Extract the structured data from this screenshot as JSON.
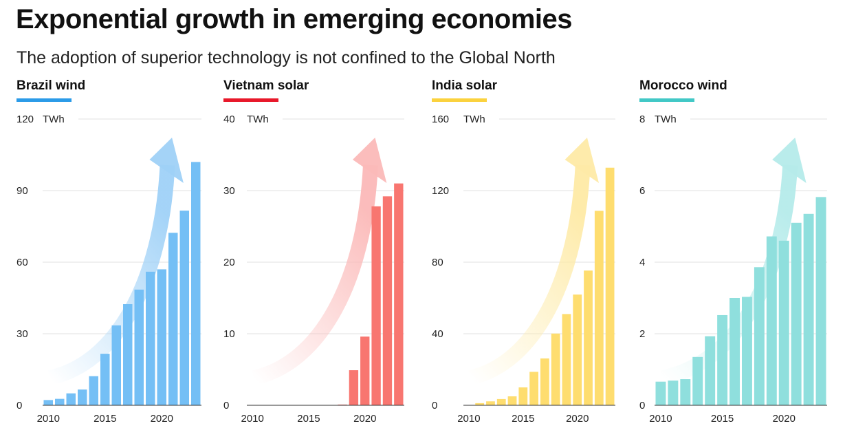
{
  "title": "Exponential growth in emerging economies",
  "subtitle": "The adoption of superior technology is not confined to the Global North",
  "chart_data": [
    {
      "type": "bar",
      "title": "Brazil wind",
      "unit": "TWh",
      "color": "#74bff5",
      "accent": "#2b9be8",
      "arrow_color": "#9fd1f7",
      "x": [
        2010,
        2011,
        2012,
        2013,
        2014,
        2015,
        2016,
        2017,
        2018,
        2019,
        2020,
        2021,
        2022,
        2023
      ],
      "values": [
        2.2,
        2.7,
        5.0,
        6.6,
        12.2,
        21.6,
        33.5,
        42.4,
        48.5,
        56.0,
        57.0,
        72.3,
        81.6,
        102.0
      ],
      "ylim": [
        0,
        120
      ],
      "yticks": [
        0,
        30,
        60,
        90,
        120
      ],
      "xticks": [
        2010,
        2015,
        2020
      ]
    },
    {
      "type": "bar",
      "title": "Vietnam solar",
      "unit": "TWh",
      "color": "#f87670",
      "accent": "#e8182a",
      "arrow_color": "#fbb9b8",
      "x": [
        2010,
        2011,
        2012,
        2013,
        2014,
        2015,
        2016,
        2017,
        2018,
        2019,
        2020,
        2021,
        2022,
        2023
      ],
      "values": [
        0,
        0,
        0,
        0,
        0,
        0,
        0,
        0,
        0.1,
        4.9,
        9.6,
        27.8,
        29.2,
        31.0
      ],
      "ylim": [
        0,
        40
      ],
      "yticks": [
        0,
        10,
        20,
        30,
        40
      ],
      "xticks": [
        2010,
        2015,
        2020
      ]
    },
    {
      "type": "bar",
      "title": "India solar",
      "unit": "TWh",
      "color": "#fedd6f",
      "accent": "#fbd23e",
      "arrow_color": "#feeaa6",
      "x": [
        2010,
        2011,
        2012,
        2013,
        2014,
        2015,
        2016,
        2017,
        2018,
        2019,
        2020,
        2021,
        2022,
        2023
      ],
      "values": [
        0.1,
        1.2,
        2.2,
        3.5,
        5.0,
        10.0,
        18.7,
        26.2,
        40.1,
        51.0,
        61.9,
        75.3,
        108.7,
        132.8
      ],
      "ylim": [
        0,
        160
      ],
      "yticks": [
        0,
        40,
        80,
        120,
        160
      ],
      "xticks": [
        2010,
        2015,
        2020
      ]
    },
    {
      "type": "bar",
      "title": "Morocco wind",
      "unit": "TWh",
      "color": "#8fdfdd",
      "accent": "#42c8c6",
      "arrow_color": "#b5ebea",
      "x": [
        2010,
        2011,
        2012,
        2013,
        2014,
        2015,
        2016,
        2017,
        2018,
        2019,
        2020,
        2021,
        2022,
        2023
      ],
      "values": [
        0.66,
        0.69,
        0.73,
        1.35,
        1.93,
        2.52,
        3.0,
        3.03,
        3.86,
        4.72,
        4.6,
        5.1,
        5.35,
        5.82
      ],
      "ylim": [
        0,
        8
      ],
      "yticks": [
        0,
        2,
        4,
        6,
        8
      ],
      "xticks": [
        2010,
        2015,
        2020
      ]
    }
  ]
}
